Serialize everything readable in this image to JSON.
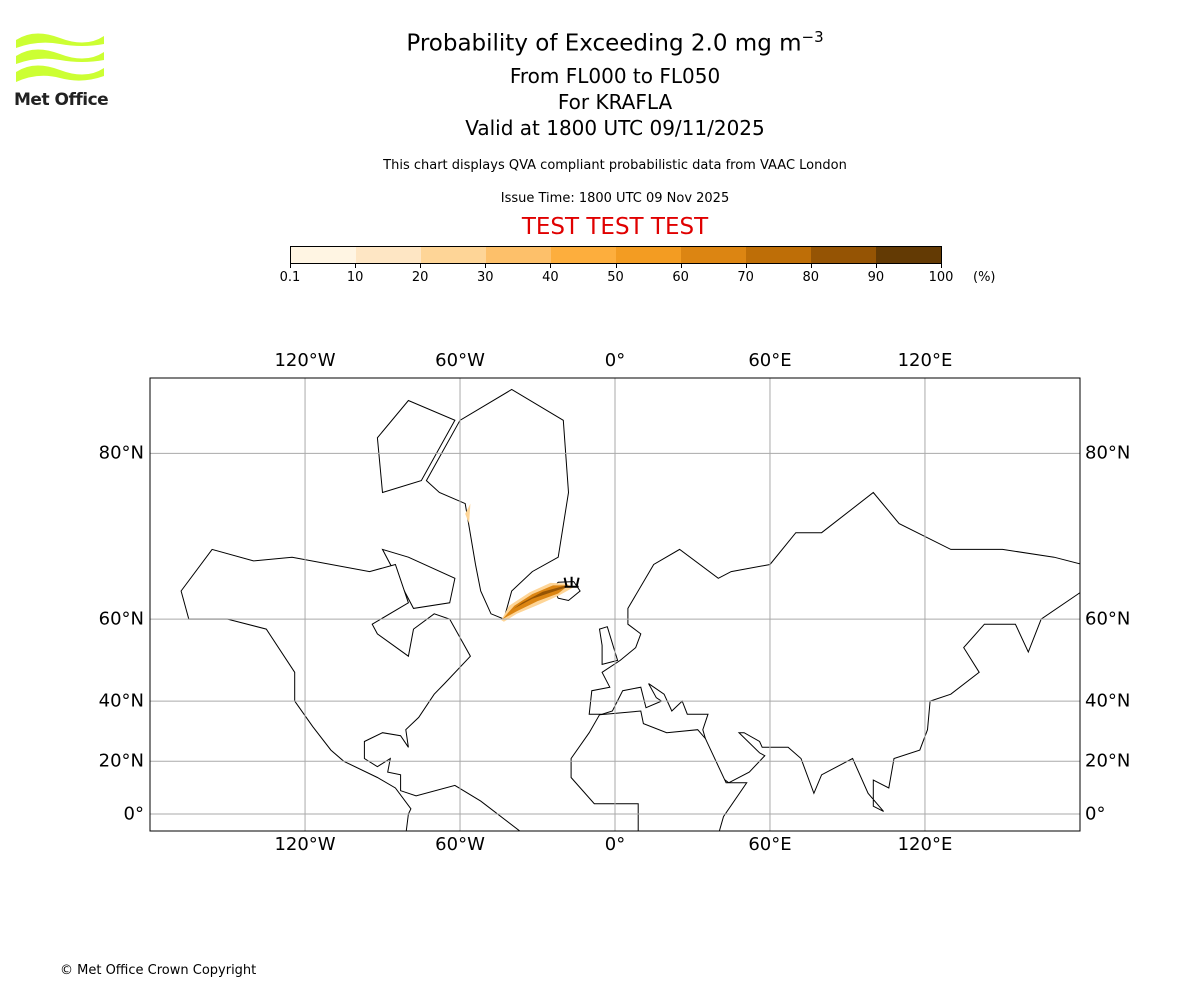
{
  "header": {
    "title_main": "Probability of Exceeding 2.0 mg m",
    "title_exp": "−3",
    "levels": "From FL000 to FL050",
    "volcano": "For KRAFLA",
    "valid": "Valid at 1800 UTC 09/11/2025",
    "note": "This chart displays QVA compliant probabilistic data from VAAC London",
    "issue": "Issue Time: 1800 UTC 09 Nov 2025",
    "test_banner": "TEST TEST TEST"
  },
  "logo": {
    "text": "Met Office",
    "color": "#ccff33"
  },
  "footer": {
    "copyright": "© Met Office Crown Copyright"
  },
  "chart_data": {
    "type": "map",
    "projection": "mercator",
    "colorbar": {
      "unit": "(%)",
      "ticks": [
        "0.1",
        "10",
        "20",
        "30",
        "40",
        "50",
        "60",
        "70",
        "80",
        "90",
        "100"
      ],
      "colors": [
        "#fff5e3",
        "#fee6c4",
        "#fed597",
        "#fdc06a",
        "#fdae3d",
        "#f39c22",
        "#dc8512",
        "#be6e07",
        "#955404",
        "#633a04"
      ]
    },
    "lon_ticks": [
      {
        "value": -120,
        "label": "120°W"
      },
      {
        "value": -60,
        "label": "60°W"
      },
      {
        "value": 0,
        "label": "0°"
      },
      {
        "value": 60,
        "label": "60°E"
      },
      {
        "value": 120,
        "label": "120°E"
      }
    ],
    "lat_ticks": [
      {
        "value": 80,
        "label": "80°N"
      },
      {
        "value": 60,
        "label": "60°N"
      },
      {
        "value": 40,
        "label": "40°N"
      },
      {
        "value": 20,
        "label": "20°N"
      },
      {
        "value": 0,
        "label": "0°"
      }
    ],
    "lon_range": [
      -180,
      180
    ],
    "lat_range": [
      -6.6,
      84
    ],
    "source": {
      "name": "KRAFLA",
      "lon": -16.8,
      "lat": 65.7
    },
    "plume_max_percent": 100,
    "grid": true
  }
}
